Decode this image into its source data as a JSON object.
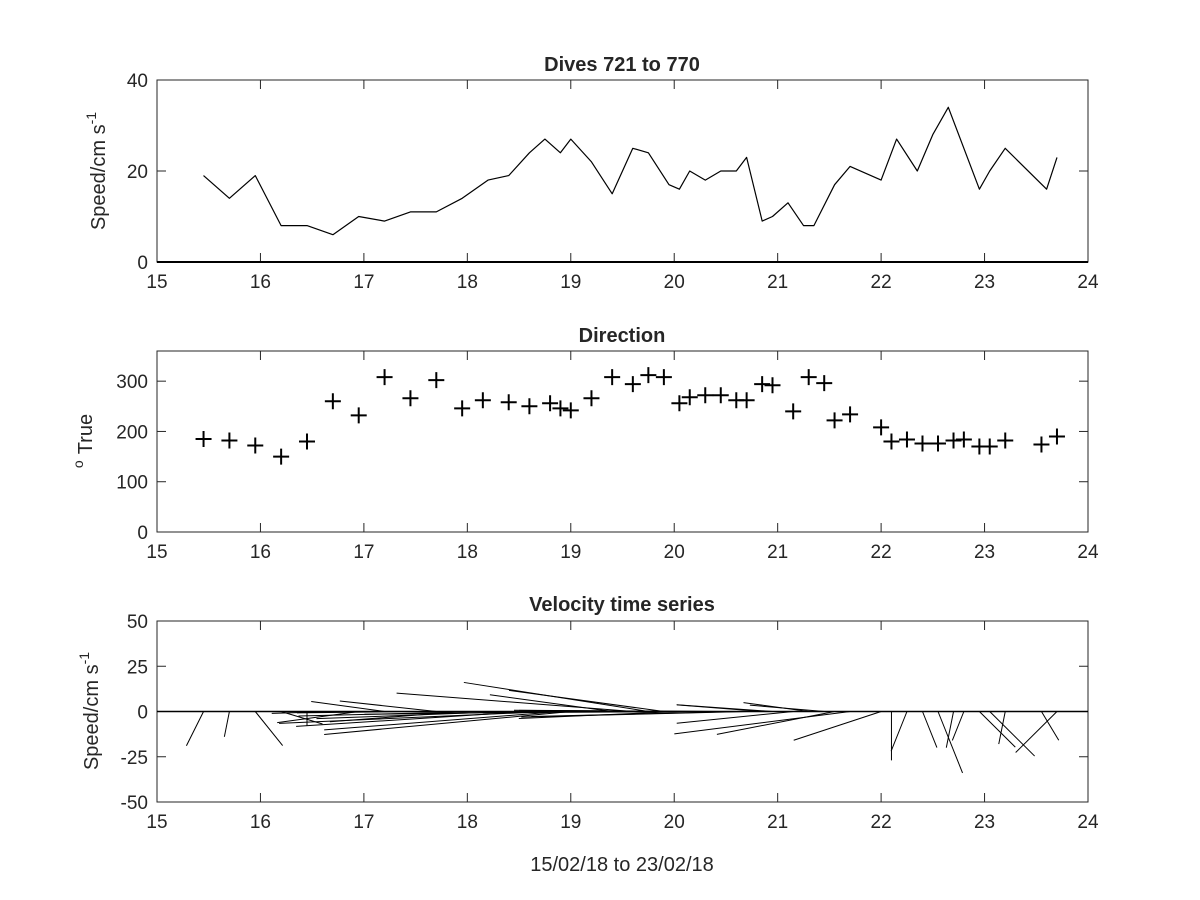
{
  "chart_data": [
    {
      "type": "line",
      "title": "Dives 721 to 770",
      "xlabel": "",
      "ylabel": "Speed/cm s",
      "ylabel_superscript": "-1",
      "xlim": [
        15,
        24
      ],
      "ylim": [
        0,
        40
      ],
      "xticks": [
        15,
        16,
        17,
        18,
        19,
        20,
        21,
        22,
        23,
        24
      ],
      "yticks": [
        0,
        20,
        40
      ],
      "grid": false,
      "series": [
        {
          "color": "#000000",
          "x": [
            15.45,
            15.7,
            15.95,
            16.2,
            16.45,
            16.7,
            16.95,
            17.2,
            17.45,
            17.7,
            17.95,
            18.2,
            18.4,
            18.6,
            18.75,
            18.9,
            19.0,
            19.2,
            19.4,
            19.6,
            19.75,
            19.95,
            20.05,
            20.15,
            20.3,
            20.45,
            20.6,
            20.7,
            20.85,
            20.95,
            21.1,
            21.25,
            21.35,
            21.55,
            21.7,
            22.0,
            22.15,
            22.35,
            22.5,
            22.65,
            22.95,
            23.05,
            23.2,
            23.6,
            23.7
          ],
          "y": [
            19,
            14,
            19,
            8,
            8,
            6,
            10,
            9,
            11,
            11,
            14,
            18,
            19,
            24,
            27,
            24,
            27,
            22,
            15,
            25,
            24,
            17,
            16,
            20,
            18,
            20,
            20,
            23,
            9,
            10,
            13,
            8,
            8,
            17,
            21,
            18,
            27,
            20,
            28,
            34,
            16,
            20,
            25,
            16,
            23
          ]
        }
      ]
    },
    {
      "type": "scatter",
      "title": "Direction",
      "xlabel": "",
      "ylabel": "True",
      "ylabel_superscript": "o",
      "xlim": [
        15,
        24
      ],
      "ylim": [
        0,
        360
      ],
      "xticks": [
        15,
        16,
        17,
        18,
        19,
        20,
        21,
        22,
        23,
        24
      ],
      "yticks": [
        0,
        100,
        200,
        300
      ],
      "grid": false,
      "marker": "+",
      "series": [
        {
          "color": "#000000",
          "x": [
            15.45,
            15.7,
            15.95,
            16.2,
            16.45,
            16.7,
            16.95,
            17.2,
            17.45,
            17.7,
            17.95,
            18.15,
            18.4,
            18.6,
            18.8,
            18.9,
            19.0,
            19.2,
            19.4,
            19.6,
            19.75,
            19.9,
            20.05,
            20.15,
            20.3,
            20.45,
            20.6,
            20.7,
            20.85,
            20.95,
            21.15,
            21.3,
            21.45,
            21.55,
            21.7,
            22.0,
            22.1,
            22.25,
            22.4,
            22.55,
            22.7,
            22.8,
            22.95,
            23.05,
            23.2,
            23.55,
            23.7
          ],
          "y": [
            185,
            182,
            172,
            150,
            180,
            260,
            232,
            308,
            266,
            302,
            246,
            262,
            258,
            250,
            256,
            246,
            242,
            266,
            308,
            294,
            312,
            308,
            256,
            268,
            272,
            272,
            262,
            262,
            294,
            292,
            240,
            308,
            296,
            222,
            234,
            208,
            180,
            184,
            176,
            176,
            182,
            184,
            170,
            170,
            182,
            174,
            190
          ]
        }
      ]
    },
    {
      "type": "quiver",
      "title": "Velocity time series",
      "xlabel": "15/02/18 to 23/02/18",
      "ylabel": "Speed/cm s",
      "ylabel_superscript": "-1",
      "xlim": [
        15,
        24
      ],
      "ylim": [
        -50,
        50
      ],
      "xticks": [
        15,
        16,
        17,
        18,
        19,
        20,
        21,
        22,
        23,
        24
      ],
      "yticks": [
        50,
        25,
        0,
        -25,
        -50
      ],
      "ytick_labels": [
        "50",
        "25",
        "0",
        "-25",
        "-50"
      ],
      "grid": false,
      "x": [
        15.45,
        15.7,
        15.95,
        16.2,
        16.45,
        16.7,
        16.95,
        17.2,
        17.45,
        17.7,
        17.95,
        18.15,
        18.4,
        18.6,
        18.8,
        18.9,
        19.0,
        19.2,
        19.4,
        19.6,
        19.75,
        19.9,
        20.05,
        20.15,
        20.3,
        20.45,
        20.6,
        20.7,
        20.85,
        20.95,
        21.15,
        21.3,
        21.45,
        21.55,
        21.7,
        22.0,
        22.1,
        22.25,
        22.4,
        22.55,
        22.7,
        22.8,
        22.95,
        23.05,
        23.2,
        23.55,
        23.7
      ],
      "speed": [
        19,
        14,
        19,
        8,
        8,
        6,
        10,
        9,
        11,
        11,
        14,
        18,
        19,
        24,
        27,
        25,
        27,
        22,
        15,
        25,
        24,
        19,
        16,
        20,
        18,
        20,
        20,
        22,
        9,
        10,
        13,
        8,
        8,
        17,
        21,
        18,
        27,
        22,
        20,
        34,
        20,
        16,
        20,
        25,
        18,
        16,
        23
      ],
      "direction_deg_true": [
        185,
        182,
        172,
        150,
        180,
        260,
        232,
        308,
        266,
        302,
        246,
        262,
        258,
        250,
        256,
        246,
        242,
        266,
        308,
        294,
        312,
        308,
        256,
        268,
        272,
        272,
        262,
        262,
        294,
        292,
        240,
        308,
        296,
        222,
        234,
        208,
        180,
        184,
        176,
        176,
        182,
        184,
        170,
        170,
        182,
        174,
        190
      ]
    }
  ]
}
